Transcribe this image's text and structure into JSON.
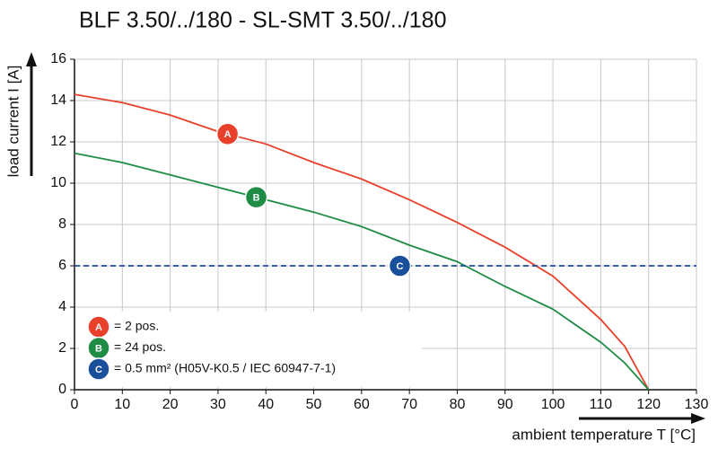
{
  "chart_data": {
    "type": "line",
    "title": "BLF 3.50/../180 - SL-SMT 3.50/../180",
    "x_label": "ambient temperature T [°C]",
    "y_label": "load current I [A]",
    "xlim": [
      0,
      130
    ],
    "ylim": [
      0,
      16
    ],
    "xticks": [
      0,
      10,
      20,
      30,
      40,
      50,
      60,
      70,
      80,
      90,
      100,
      110,
      120,
      130
    ],
    "yticks": [
      0,
      2,
      4,
      6,
      8,
      10,
      12,
      14,
      16
    ],
    "grid": true,
    "series": [
      {
        "name": "= 2 pos.",
        "marker": "A",
        "color": "#e8402a",
        "dashed": false,
        "x": [
          0,
          10,
          20,
          30,
          40,
          50,
          60,
          70,
          80,
          90,
          100,
          110,
          115,
          120
        ],
        "values": [
          14.3,
          13.9,
          13.3,
          12.5,
          11.9,
          11.0,
          10.2,
          9.2,
          8.1,
          6.9,
          5.5,
          3.4,
          2.1,
          0
        ]
      },
      {
        "name": "= 24 pos.",
        "marker": "B",
        "color": "#1e8c45",
        "dashed": false,
        "x": [
          0,
          10,
          20,
          30,
          40,
          50,
          60,
          70,
          80,
          90,
          100,
          110,
          115,
          120
        ],
        "values": [
          11.45,
          11.0,
          10.4,
          9.8,
          9.2,
          8.6,
          7.9,
          7.0,
          6.2,
          5.0,
          3.9,
          2.3,
          1.3,
          0
        ]
      },
      {
        "name": "= 0.5 mm² (H05V-K0.5 / IEC 60947-7-1)",
        "marker": "C",
        "color": "#1a4f9c",
        "dashed": true,
        "x": [
          0,
          130
        ],
        "values": [
          6,
          6
        ]
      }
    ]
  }
}
